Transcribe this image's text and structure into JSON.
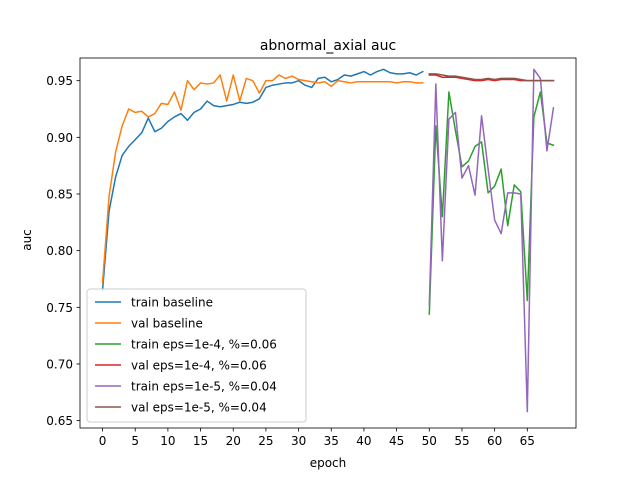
{
  "chart_data": {
    "type": "line",
    "title": "abnormal_axial auc",
    "xlabel": "epoch",
    "ylabel": "auc",
    "xlim": [
      -3.45,
      72.45
    ],
    "ylim": [
      0.6435,
      0.97
    ],
    "xticks": [
      0,
      5,
      10,
      15,
      20,
      25,
      30,
      35,
      40,
      45,
      50,
      55,
      60,
      65
    ],
    "yticks": [
      0.65,
      0.7,
      0.75,
      0.8,
      0.85,
      0.9,
      0.95
    ],
    "ytick_labels": [
      "0.65",
      "0.70",
      "0.75",
      "0.80",
      "0.85",
      "0.90",
      "0.95"
    ],
    "grid": false,
    "legend_position": "lower left",
    "series": [
      {
        "name": "train baseline",
        "color": "#1f77b4",
        "x": [
          0,
          1,
          2,
          3,
          4,
          5,
          6,
          7,
          8,
          9,
          10,
          11,
          12,
          13,
          14,
          15,
          16,
          17,
          18,
          19,
          20,
          21,
          22,
          23,
          24,
          25,
          26,
          27,
          28,
          29,
          30,
          31,
          32,
          33,
          34,
          35,
          36,
          37,
          38,
          39,
          40,
          41,
          42,
          43,
          44,
          45,
          46,
          47,
          48,
          49
        ],
        "y": [
          0.765,
          0.835,
          0.865,
          0.884,
          0.892,
          0.898,
          0.904,
          0.917,
          0.905,
          0.908,
          0.914,
          0.918,
          0.921,
          0.915,
          0.922,
          0.925,
          0.932,
          0.928,
          0.927,
          0.928,
          0.929,
          0.931,
          0.93,
          0.931,
          0.934,
          0.944,
          0.946,
          0.947,
          0.948,
          0.948,
          0.95,
          0.946,
          0.944,
          0.952,
          0.953,
          0.949,
          0.951,
          0.955,
          0.954,
          0.956,
          0.958,
          0.955,
          0.958,
          0.96,
          0.957,
          0.956,
          0.956,
          0.957,
          0.955,
          0.958
        ]
      },
      {
        "name": "val baseline",
        "color": "#ff7f0e",
        "x": [
          0,
          1,
          2,
          3,
          4,
          5,
          6,
          7,
          8,
          9,
          10,
          11,
          12,
          13,
          14,
          15,
          16,
          17,
          18,
          19,
          20,
          21,
          22,
          23,
          24,
          25,
          26,
          27,
          28,
          29,
          30,
          31,
          32,
          33,
          34,
          35,
          36,
          37,
          38,
          39,
          40,
          41,
          42,
          43,
          44,
          45,
          46,
          47,
          48,
          49
        ],
        "y": [
          0.772,
          0.848,
          0.887,
          0.91,
          0.925,
          0.922,
          0.923,
          0.918,
          0.921,
          0.93,
          0.929,
          0.94,
          0.924,
          0.95,
          0.942,
          0.948,
          0.947,
          0.948,
          0.955,
          0.932,
          0.955,
          0.932,
          0.952,
          0.95,
          0.939,
          0.95,
          0.95,
          0.955,
          0.952,
          0.954,
          0.951,
          0.95,
          0.949,
          0.948,
          0.949,
          0.945,
          0.95,
          0.949,
          0.948,
          0.949,
          0.949,
          0.949,
          0.949,
          0.949,
          0.949,
          0.948,
          0.949,
          0.949,
          0.948,
          0.948
        ]
      },
      {
        "name": "train eps=1e-4, %=0.06",
        "color": "#2ca02c",
        "x": [
          50,
          51,
          52,
          53,
          54,
          55,
          56,
          57,
          58,
          59,
          60,
          61,
          62,
          63,
          64,
          65,
          66,
          67,
          68,
          69
        ],
        "y": [
          0.744,
          0.91,
          0.83,
          0.94,
          0.906,
          0.874,
          0.879,
          0.892,
          0.896,
          0.851,
          0.857,
          0.872,
          0.822,
          0.858,
          0.852,
          0.756,
          0.918,
          0.94,
          0.895,
          0.893
        ]
      },
      {
        "name": "val eps=1e-4, %=0.06",
        "color": "#d62728",
        "x": [
          50,
          51,
          52,
          53,
          54,
          55,
          56,
          57,
          58,
          59,
          60,
          61,
          62,
          63,
          64,
          65,
          66,
          67,
          68,
          69
        ],
        "y": [
          0.955,
          0.955,
          0.953,
          0.953,
          0.953,
          0.952,
          0.951,
          0.95,
          0.95,
          0.951,
          0.95,
          0.951,
          0.951,
          0.951,
          0.95,
          0.95,
          0.95,
          0.95,
          0.95,
          0.95
        ]
      },
      {
        "name": "train eps=1e-5, %=0.04",
        "color": "#9467bd",
        "x": [
          50,
          51,
          52,
          53,
          54,
          55,
          56,
          57,
          58,
          59,
          60,
          61,
          62,
          63,
          64,
          65,
          66,
          67,
          68,
          69
        ],
        "y": [
          0.752,
          0.947,
          0.791,
          0.916,
          0.922,
          0.864,
          0.875,
          0.849,
          0.919,
          0.872,
          0.827,
          0.815,
          0.851,
          0.851,
          0.85,
          0.658,
          0.96,
          0.952,
          0.888,
          0.926
        ]
      },
      {
        "name": "val eps=1e-5, %=0.04",
        "color": "#8c564b",
        "x": [
          50,
          51,
          52,
          53,
          54,
          55,
          56,
          57,
          58,
          59,
          60,
          61,
          62,
          63,
          64,
          65,
          66,
          67,
          68,
          69
        ],
        "y": [
          0.956,
          0.956,
          0.955,
          0.954,
          0.954,
          0.953,
          0.952,
          0.951,
          0.951,
          0.952,
          0.951,
          0.952,
          0.952,
          0.952,
          0.951,
          0.95,
          0.95,
          0.95,
          0.95,
          0.95
        ]
      }
    ]
  }
}
